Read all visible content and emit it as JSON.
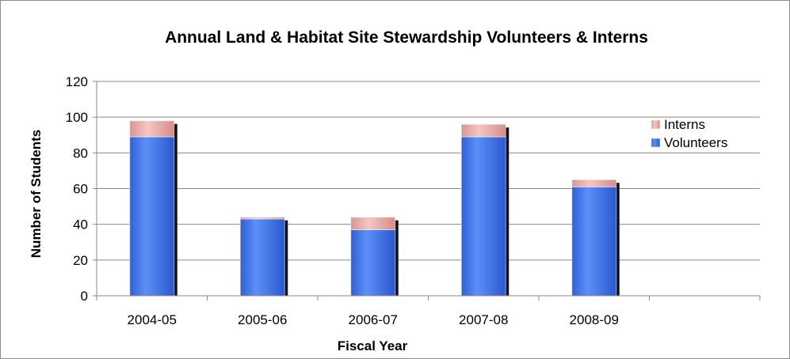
{
  "chart_data": {
    "type": "bar",
    "stacked": true,
    "title": "Annual Land & Habitat Site Stewardship Volunteers & Interns",
    "xlabel": "Fiscal Year",
    "ylabel": "Number of Students",
    "categories": [
      "2004-05",
      "2005-06",
      "2006-07",
      "2007-08",
      "2008-09",
      ""
    ],
    "series": [
      {
        "name": "Volunteers",
        "values": [
          89,
          43,
          37,
          89,
          61,
          null
        ],
        "color": "#3b6ee8"
      },
      {
        "name": "Interns",
        "values": [
          9,
          1,
          7,
          7,
          4,
          null
        ],
        "color": "#e3a9a4"
      }
    ],
    "ylim": [
      0,
      120
    ],
    "yticks": [
      0,
      20,
      40,
      60,
      80,
      100,
      120
    ],
    "grid": true,
    "legend_position": "right"
  }
}
